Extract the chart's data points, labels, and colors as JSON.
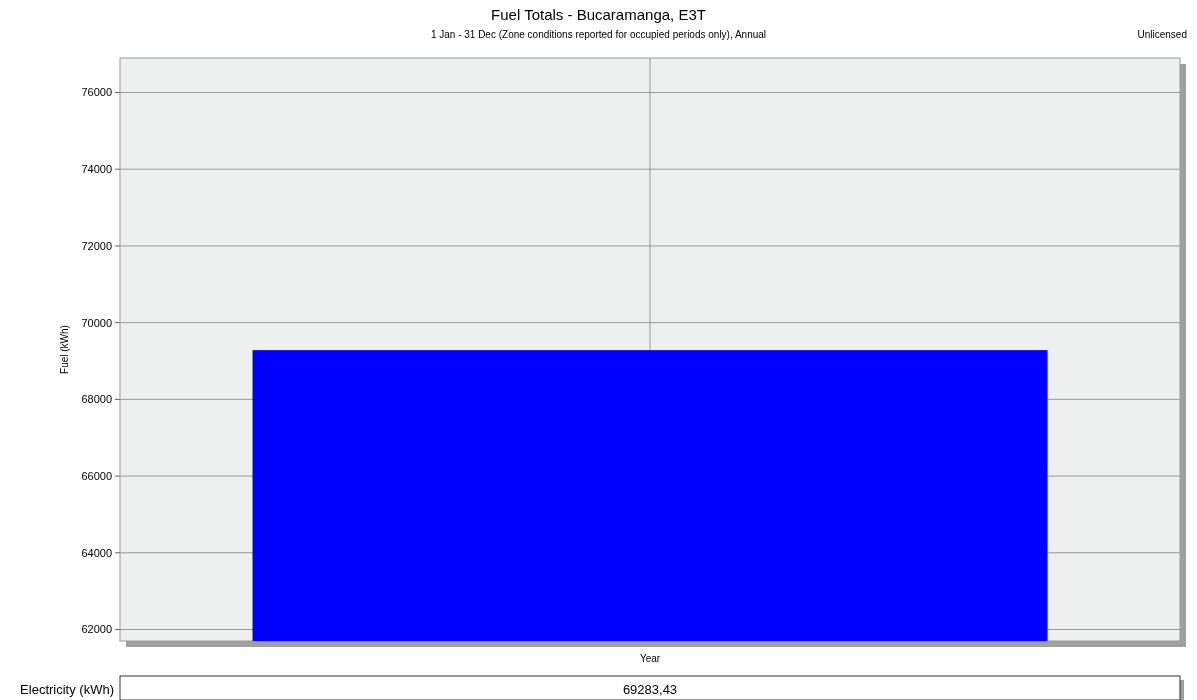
{
  "chart_data": {
    "type": "bar",
    "title": "Fuel Totals - Bucaramanga, E3T",
    "subtitle": "1 Jan - 31 Dec (Zone conditions reported for occupied periods only), Annual",
    "annotations": [
      "Unlicensed"
    ],
    "ylabel": "Fuel (kWh)",
    "categories": [
      "Year"
    ],
    "series": [
      {
        "name": "Electricity (kWh)",
        "color": "#0000ff",
        "values": [
          69283.43
        ],
        "value_labels": [
          "69283,43"
        ]
      }
    ],
    "ylim": [
      61700,
      76900
    ],
    "yticks": [
      62000,
      64000,
      66000,
      68000,
      70000,
      72000,
      74000,
      76000
    ],
    "grid": true
  }
}
